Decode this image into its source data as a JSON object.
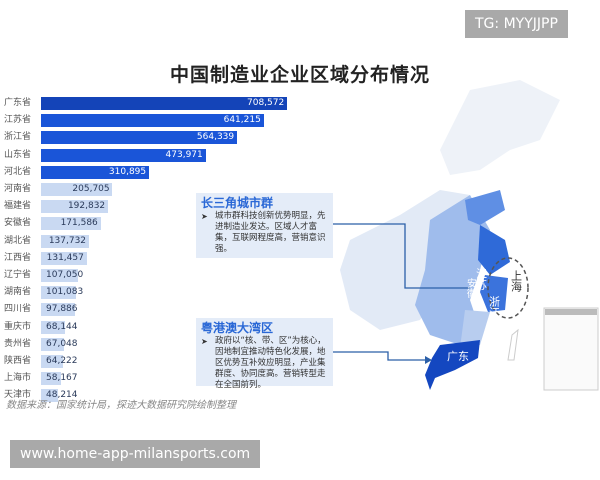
{
  "watermark_top": "TG: MYYJJPP",
  "watermark_bottom": "www.home-app-milansports.com",
  "chart_data": {
    "type": "bar",
    "orientation": "horizontal",
    "title": "中国制造业企业区域分布情况",
    "categories": [
      "广东省",
      "江苏省",
      "浙江省",
      "山东省",
      "河北省",
      "河南省",
      "福建省",
      "安徽省",
      "湖北省",
      "江西省",
      "辽宁省",
      "湖南省",
      "四川省",
      "重庆市",
      "贵州省",
      "陕西省",
      "上海市",
      "天津市"
    ],
    "values": [
      708572,
      641215,
      564339,
      473971,
      310895,
      205705,
      192832,
      171586,
      137732,
      131457,
      107050,
      101083,
      97886,
      68144,
      67048,
      64222,
      58167,
      48214
    ],
    "labels": [
      "708,572",
      "641,215",
      "564,339",
      "473,971",
      "310,895",
      "205,705",
      "192,832",
      "171,586",
      "137,732",
      "131,457",
      "107,050",
      "101,083",
      "97,886",
      "68,144",
      "67,048",
      "64,222",
      "58,167",
      "48,214"
    ],
    "highlight_count": 5,
    "colors": {
      "highlight": "#1a55d8",
      "top": "#1444b8",
      "normal": "#c9d9f2"
    },
    "source": "数据来源：国家统计局，探迹大数据研究院绘制整理"
  },
  "callouts": [
    {
      "title": "长三角城市群",
      "text": "城市群科技创新优势明显，先进制造业发达。区域人才富集，互联网程度高，营销意识强。"
    },
    {
      "title": "粤港澳大湾区",
      "text": "政府以“核、带、区”为核心，因地制宜推动特色化发展，地区优势互补效应明显，产业集群度、协同度高。营销转型走在全国前列。"
    }
  ],
  "map_labels": {
    "jiangsu": "江苏",
    "anhui": "安徽",
    "zhejiang": "浙江",
    "shanghai": "上海",
    "guangdong": "广东"
  }
}
